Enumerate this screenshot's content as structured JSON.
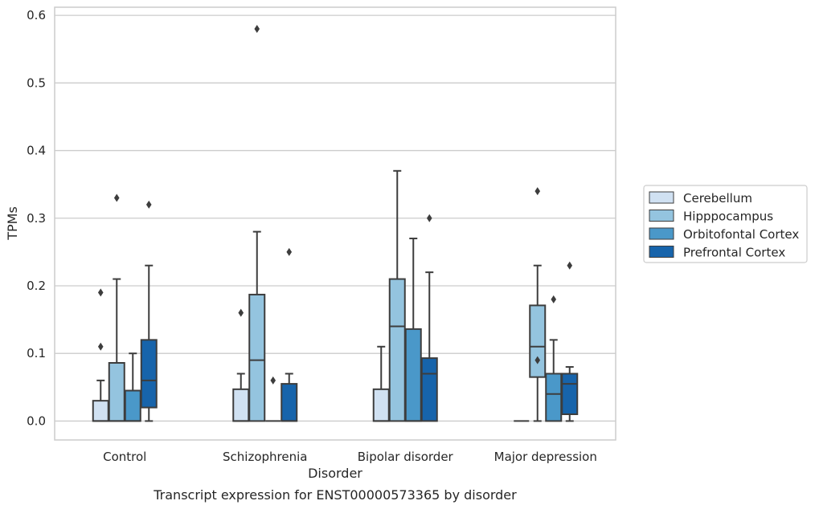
{
  "chart_data": {
    "type": "box",
    "title": "Transcript expression for ENST00000573365 by disorder",
    "xlabel": "Disorder",
    "ylabel": "TPMs",
    "ylim": [
      -0.028,
      0.612
    ],
    "yticks": [
      "0.0",
      "0.1",
      "0.2",
      "0.3",
      "0.4",
      "0.5",
      "0.6"
    ],
    "grid": "horizontal",
    "legend_position": "right",
    "categories": [
      "Control",
      "Schizophrenia",
      "Bipolar disorder",
      "Major depression"
    ],
    "series": [
      {
        "name": "Cerebellum",
        "color": "#d0e1f2",
        "boxes": [
          {
            "whislo": 0,
            "q1": 0,
            "med": 0,
            "q3": 0.03,
            "whishi": 0.06,
            "fliers": [
              0.11,
              0.19
            ]
          },
          {
            "whislo": 0,
            "q1": 0,
            "med": 0,
            "q3": 0.047,
            "whishi": 0.07,
            "fliers": [
              0.16
            ]
          },
          {
            "whislo": 0,
            "q1": 0,
            "med": 0,
            "q3": 0.047,
            "whishi": 0.11,
            "fliers": []
          },
          {
            "whislo": 0,
            "q1": 0,
            "med": 0,
            "q3": 0,
            "whishi": 0,
            "fliers": []
          }
        ]
      },
      {
        "name": "Hipppocampus",
        "color": "#94c4df",
        "boxes": [
          {
            "whislo": 0,
            "q1": 0,
            "med": 0,
            "q3": 0.086,
            "whishi": 0.21,
            "fliers": [
              0.33
            ]
          },
          {
            "whislo": 0,
            "q1": 0,
            "med": 0.09,
            "q3": 0.187,
            "whishi": 0.28,
            "fliers": [
              0.58
            ]
          },
          {
            "whislo": 0,
            "q1": 0,
            "med": 0.14,
            "q3": 0.21,
            "whishi": 0.37,
            "fliers": []
          },
          {
            "whislo": 0,
            "q1": 0.065,
            "med": 0.11,
            "q3": 0.171,
            "whishi": 0.23,
            "fliers": [
              0.09,
              0.34
            ]
          }
        ]
      },
      {
        "name": "Orbitofontal Cortex",
        "color": "#4a98c9",
        "boxes": [
          {
            "whislo": 0,
            "q1": 0,
            "med": 0,
            "q3": 0.045,
            "whishi": 0.1,
            "fliers": []
          },
          {
            "whislo": 0,
            "q1": 0,
            "med": 0,
            "q3": 0,
            "whishi": 0,
            "fliers": [
              0.06
            ]
          },
          {
            "whislo": 0,
            "q1": 0,
            "med": 0,
            "q3": 0.136,
            "whishi": 0.27,
            "fliers": []
          },
          {
            "whislo": 0,
            "q1": 0,
            "med": 0.04,
            "q3": 0.07,
            "whishi": 0.12,
            "fliers": [
              0.18
            ]
          }
        ]
      },
      {
        "name": "Prefrontal Cortex",
        "color": "#1764ab",
        "boxes": [
          {
            "whislo": 0,
            "q1": 0.02,
            "med": 0.06,
            "q3": 0.12,
            "whishi": 0.23,
            "fliers": [
              0.32
            ]
          },
          {
            "whislo": 0,
            "q1": 0,
            "med": 0,
            "q3": 0.055,
            "whishi": 0.07,
            "fliers": [
              0.25
            ]
          },
          {
            "whislo": 0,
            "q1": 0,
            "med": 0.07,
            "q3": 0.093,
            "whishi": 0.22,
            "fliers": [
              0.3
            ]
          },
          {
            "whislo": 0,
            "q1": 0.01,
            "med": 0.055,
            "q3": 0.07,
            "whishi": 0.08,
            "fliers": [
              0.23
            ]
          }
        ]
      }
    ]
  }
}
